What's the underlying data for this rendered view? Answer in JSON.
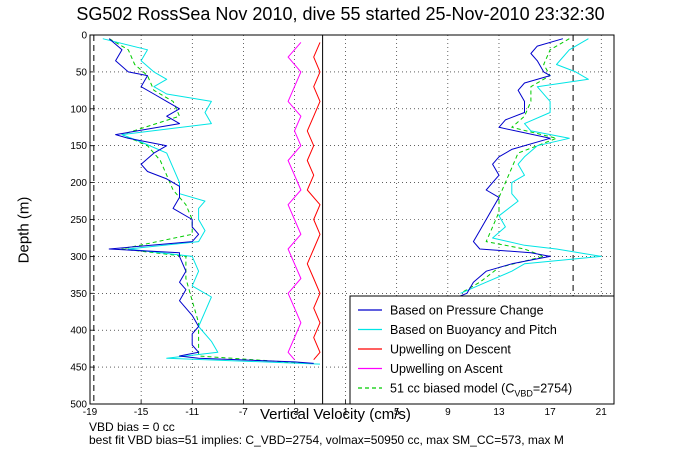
{
  "title": "SG502 RossSea Nov 2010, dive 55 started 25-Nov-2010 23:32:30",
  "footer": {
    "line1": "VBD bias = 0 cc",
    "line2": "best fit VBD bias=51 implies: C_VBD=2754, volmax=50950 cc, max SM_CC=573, max M"
  },
  "chart_data": {
    "type": "line",
    "xlabel": "Vertical Velocity (cm/s)",
    "ylabel": "Depth (m)",
    "xlim": [
      -19,
      22
    ],
    "ylim": [
      500,
      0
    ],
    "xticks": [
      -19,
      -15,
      -11,
      -7,
      -3,
      1,
      5,
      9,
      13,
      17,
      21
    ],
    "yticks": [
      0,
      50,
      100,
      150,
      200,
      250,
      300,
      350,
      400,
      450,
      500
    ],
    "grid": true,
    "legend_position": "lower-right",
    "reference_lines": {
      "zero_line_x": -0.8,
      "dashed_bounds_x": [
        -18.7,
        18.8
      ]
    },
    "series": [
      {
        "name": "Based on Pressure Change",
        "color": "#0000cc",
        "style": "solid",
        "descent": [
          [
            -17.5,
            5
          ],
          [
            -16.5,
            20
          ],
          [
            -17,
            35
          ],
          [
            -16,
            50
          ],
          [
            -14.5,
            55
          ],
          [
            -15,
            70
          ],
          [
            -14,
            80
          ],
          [
            -13,
            90
          ],
          [
            -12,
            100
          ],
          [
            -13,
            110
          ],
          [
            -12,
            120
          ],
          [
            -17,
            135
          ],
          [
            -16,
            140
          ],
          [
            -13,
            150
          ],
          [
            -14,
            160
          ],
          [
            -15,
            175
          ],
          [
            -14.5,
            185
          ],
          [
            -13,
            195
          ],
          [
            -12,
            205
          ],
          [
            -12,
            220
          ],
          [
            -12.5,
            235
          ],
          [
            -11,
            250
          ],
          [
            -11,
            260
          ],
          [
            -10.5,
            270
          ],
          [
            -11,
            280
          ],
          [
            -17.5,
            290
          ],
          [
            -12,
            295
          ],
          [
            -12,
            300
          ],
          [
            -11.5,
            320
          ],
          [
            -12,
            335
          ],
          [
            -11.5,
            345
          ],
          [
            -12,
            360
          ],
          [
            -11,
            380
          ],
          [
            -10.5,
            395
          ],
          [
            -11,
            405
          ],
          [
            -11,
            420
          ],
          [
            -10.5,
            430
          ],
          [
            -12,
            435
          ],
          [
            -10.5,
            438
          ],
          [
            -3,
            443
          ],
          [
            -1.5,
            445
          ]
        ],
        "ascent": [
          [
            18,
            5
          ],
          [
            16,
            15
          ],
          [
            15.5,
            25
          ],
          [
            16,
            35
          ],
          [
            16.5,
            50
          ],
          [
            17,
            55
          ],
          [
            15,
            65
          ],
          [
            14.5,
            75
          ],
          [
            15,
            90
          ],
          [
            15,
            105
          ],
          [
            13.5,
            115
          ],
          [
            13,
            125
          ],
          [
            17,
            140
          ],
          [
            14,
            155
          ],
          [
            13,
            165
          ],
          [
            12.5,
            175
          ],
          [
            13,
            190
          ],
          [
            12.5,
            200
          ],
          [
            12,
            210
          ],
          [
            13,
            220
          ],
          [
            12.5,
            235
          ],
          [
            12,
            250
          ],
          [
            11.5,
            265
          ],
          [
            11,
            280
          ],
          [
            11.5,
            290
          ],
          [
            15.5,
            295
          ],
          [
            17,
            300
          ],
          [
            14,
            310
          ],
          [
            12,
            320
          ],
          [
            11,
            335
          ],
          [
            10.5,
            350
          ],
          [
            9,
            360
          ]
        ]
      },
      {
        "name": "Based on Buoyancy and Pitch",
        "color": "#00e5e5",
        "style": "solid",
        "descent": [
          [
            -18,
            5
          ],
          [
            -14.5,
            20
          ],
          [
            -15,
            35
          ],
          [
            -14,
            50
          ],
          [
            -13,
            60
          ],
          [
            -14,
            70
          ],
          [
            -13,
            80
          ],
          [
            -9.5,
            90
          ],
          [
            -10,
            105
          ],
          [
            -9.5,
            120
          ],
          [
            -16.5,
            135
          ],
          [
            -15,
            145
          ],
          [
            -13,
            160
          ],
          [
            -12.5,
            180
          ],
          [
            -12,
            200
          ],
          [
            -12,
            215
          ],
          [
            -10,
            225
          ],
          [
            -10.5,
            235
          ],
          [
            -10.5,
            250
          ],
          [
            -10,
            265
          ],
          [
            -10.5,
            280
          ],
          [
            -16,
            290
          ],
          [
            -11,
            300
          ],
          [
            -10.5,
            320
          ],
          [
            -11,
            340
          ],
          [
            -9.5,
            355
          ],
          [
            -10,
            375
          ],
          [
            -10.5,
            395
          ],
          [
            -9.5,
            415
          ],
          [
            -9,
            430
          ],
          [
            -13,
            438
          ],
          [
            -1,
            446
          ]
        ],
        "ascent": [
          [
            20,
            5
          ],
          [
            18.5,
            20
          ],
          [
            17.5,
            40
          ],
          [
            19,
            50
          ],
          [
            20,
            60
          ],
          [
            16,
            70
          ],
          [
            17,
            90
          ],
          [
            17,
            105
          ],
          [
            15,
            120
          ],
          [
            15.5,
            130
          ],
          [
            18.5,
            140
          ],
          [
            16,
            150
          ],
          [
            15,
            165
          ],
          [
            14.5,
            175
          ],
          [
            15,
            190
          ],
          [
            14,
            200
          ],
          [
            14,
            215
          ],
          [
            14.5,
            225
          ],
          [
            13,
            245
          ],
          [
            13.5,
            260
          ],
          [
            12.5,
            275
          ],
          [
            15,
            285
          ],
          [
            17.5,
            290
          ],
          [
            21,
            300
          ],
          [
            15,
            310
          ],
          [
            14,
            320
          ],
          [
            12,
            335
          ],
          [
            10,
            350
          ]
        ]
      },
      {
        "name": "Upwelling on Descent",
        "color": "#ff0000",
        "style": "solid",
        "descent": [
          [
            -1,
            10
          ],
          [
            -1.5,
            30
          ],
          [
            -1,
            50
          ],
          [
            -1.5,
            70
          ],
          [
            -1,
            90
          ],
          [
            -1.5,
            110
          ],
          [
            -2,
            130
          ],
          [
            -1.5,
            150
          ],
          [
            -2,
            170
          ],
          [
            -1.5,
            190
          ],
          [
            -2,
            210
          ],
          [
            -1,
            230
          ],
          [
            -1.5,
            250
          ],
          [
            -1,
            270
          ],
          [
            -1.5,
            290
          ],
          [
            -2,
            310
          ],
          [
            -1.5,
            330
          ],
          [
            -1,
            350
          ],
          [
            -1.5,
            370
          ],
          [
            -1,
            390
          ],
          [
            -1.5,
            410
          ],
          [
            -1,
            430
          ],
          [
            -1.5,
            440
          ]
        ]
      },
      {
        "name": "Upwelling on Ascent",
        "color": "#ff00ff",
        "style": "solid",
        "ascent": [
          [
            -2.5,
            10
          ],
          [
            -3.5,
            30
          ],
          [
            -2.5,
            50
          ],
          [
            -3,
            70
          ],
          [
            -3.5,
            90
          ],
          [
            -2.5,
            110
          ],
          [
            -3,
            130
          ],
          [
            -2.5,
            150
          ],
          [
            -3.5,
            170
          ],
          [
            -3,
            190
          ],
          [
            -2.5,
            210
          ],
          [
            -3.5,
            230
          ],
          [
            -3,
            250
          ],
          [
            -2.5,
            270
          ],
          [
            -3.5,
            290
          ],
          [
            -3,
            310
          ],
          [
            -2.5,
            330
          ],
          [
            -3.5,
            350
          ],
          [
            -3,
            370
          ],
          [
            -2.5,
            390
          ],
          [
            -3,
            410
          ],
          [
            -3.5,
            430
          ],
          [
            -3,
            440
          ]
        ]
      },
      {
        "name": "51 cc biased model (C_VBD=2754)",
        "legend_main": "51 cc biased model (C",
        "legend_sub": "VBD",
        "legend_tail": "=2754)",
        "color": "#00cc00",
        "style": "dashed",
        "descent": [
          [
            -17.5,
            5
          ],
          [
            -16,
            20
          ],
          [
            -15.5,
            40
          ],
          [
            -14.5,
            55
          ],
          [
            -14,
            75
          ],
          [
            -12.5,
            90
          ],
          [
            -12,
            110
          ],
          [
            -16.5,
            135
          ],
          [
            -14.5,
            150
          ],
          [
            -13.5,
            170
          ],
          [
            -13,
            190
          ],
          [
            -12.5,
            210
          ],
          [
            -11.5,
            230
          ],
          [
            -11,
            250
          ],
          [
            -11,
            270
          ],
          [
            -16.5,
            290
          ],
          [
            -11.5,
            300
          ],
          [
            -11.5,
            330
          ],
          [
            -11,
            360
          ],
          [
            -10.5,
            390
          ],
          [
            -10.5,
            420
          ],
          [
            -10.5,
            435
          ],
          [
            -2,
            445
          ]
        ],
        "ascent": [
          [
            18.5,
            5
          ],
          [
            17,
            20
          ],
          [
            16.5,
            40
          ],
          [
            17,
            55
          ],
          [
            15.5,
            70
          ],
          [
            15.5,
            90
          ],
          [
            15,
            110
          ],
          [
            14,
            125
          ],
          [
            17.5,
            140
          ],
          [
            14.5,
            160
          ],
          [
            14,
            180
          ],
          [
            13.5,
            200
          ],
          [
            13,
            220
          ],
          [
            13,
            240
          ],
          [
            12.5,
            260
          ],
          [
            12,
            280
          ],
          [
            15,
            290
          ],
          [
            16.5,
            300
          ],
          [
            13,
            315
          ],
          [
            11.5,
            335
          ],
          [
            10,
            350
          ]
        ]
      }
    ]
  }
}
